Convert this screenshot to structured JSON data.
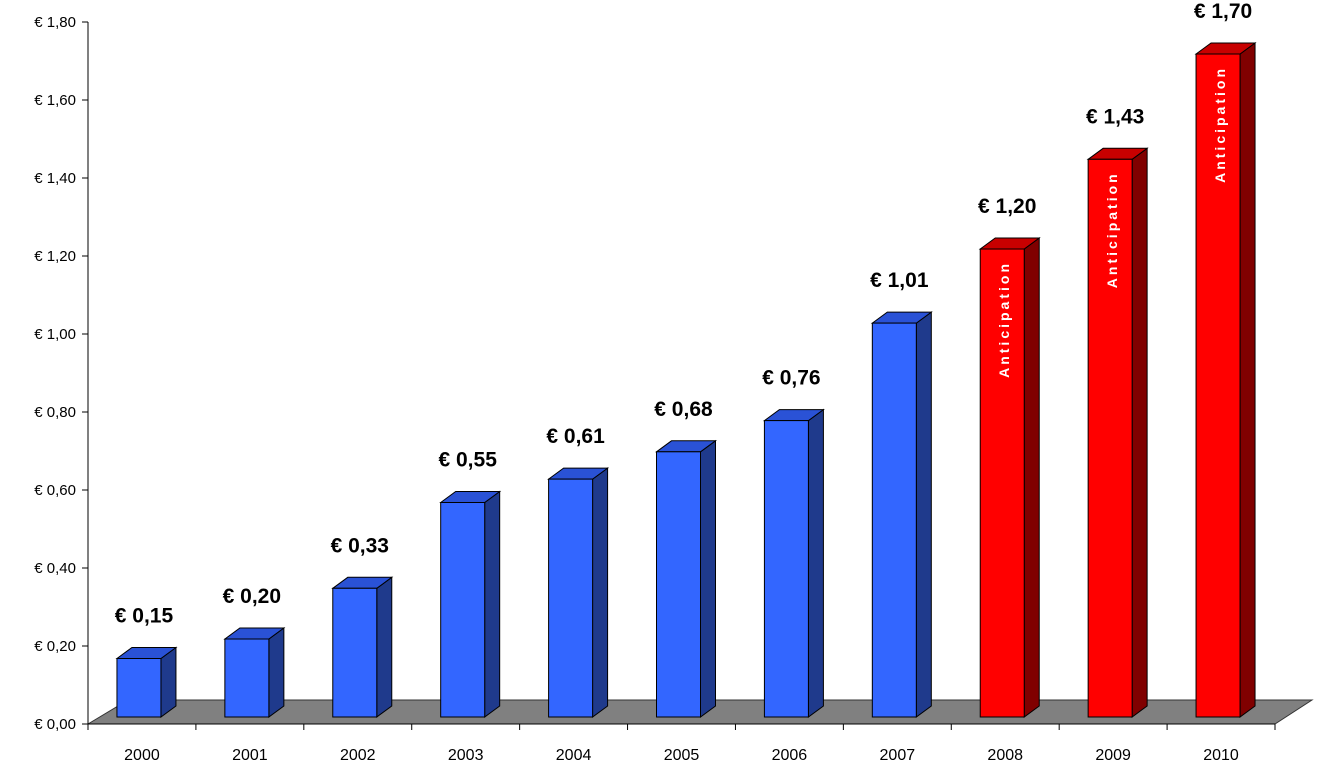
{
  "chart_data": {
    "type": "bar",
    "title": "",
    "xlabel": "",
    "ylabel": "",
    "categories": [
      "2000",
      "2001",
      "2002",
      "2003",
      "2004",
      "2005",
      "2006",
      "2007",
      "2008",
      "2009",
      "2010"
    ],
    "values": [
      0.15,
      0.2,
      0.33,
      0.55,
      0.61,
      0.68,
      0.76,
      1.01,
      1.2,
      1.43,
      1.7
    ],
    "data_labels": [
      "€ 0,15",
      "€ 0,20",
      "€ 0,33",
      "€ 0,55",
      "€ 0,61",
      "€ 0,68",
      "€ 0,76",
      "€ 1,01",
      "€ 1,20",
      "€ 1,43",
      "€ 1,70"
    ],
    "ylim": [
      0,
      1.8
    ],
    "y_ticks": [
      0,
      0.2,
      0.4,
      0.6,
      0.8,
      1.0,
      1.2,
      1.4,
      1.6,
      1.8
    ],
    "y_tick_labels": [
      "€ 0,00",
      "€ 0,20",
      "€ 0,40",
      "€ 0,60",
      "€ 0,80",
      "€ 1,00",
      "€ 1,20",
      "€ 1,40",
      "€ 1,60",
      "€ 1,80"
    ],
    "bar_annotation": "Anticipation",
    "annotated_categories": [
      "2008",
      "2009",
      "2010"
    ],
    "grid": false,
    "legend": "none",
    "style": "3d-column",
    "colors": {
      "actual_front": "#3366ff",
      "actual_side": "#1f3a8c",
      "actual_top": "#2a52d6",
      "forecast_front": "#ff0000",
      "forecast_side": "#800000",
      "forecast_top": "#c80000",
      "floor": "#808080"
    }
  }
}
